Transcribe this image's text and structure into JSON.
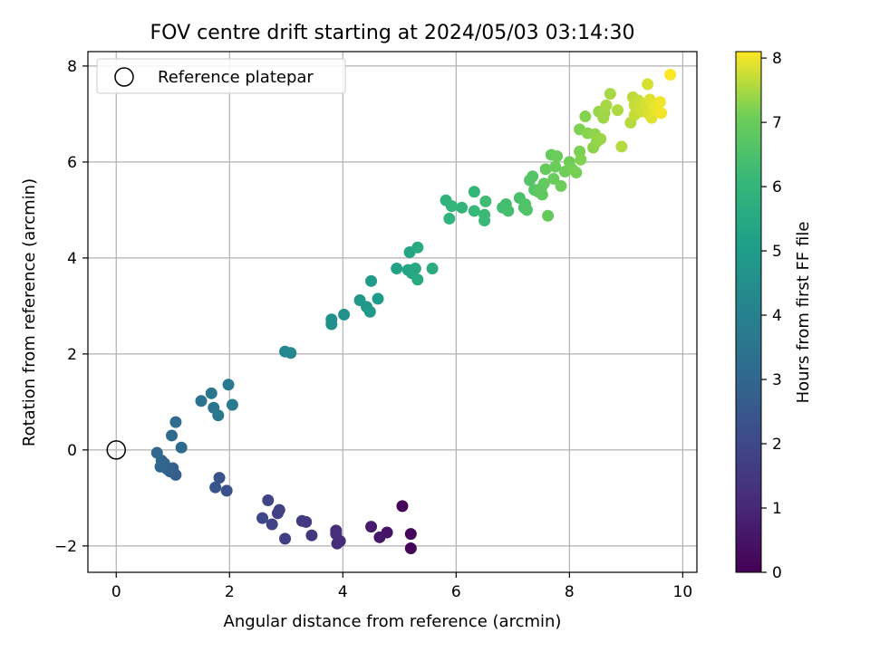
{
  "chart_data": {
    "type": "scatter",
    "title": "FOV centre drift starting at 2024/05/03 03:14:30",
    "xlabel": "Angular distance from reference (arcmin)",
    "ylabel": "Rotation from reference (arcmin)",
    "xlim": [
      -0.5,
      10.25
    ],
    "ylim": [
      -2.55,
      8.3
    ],
    "xticks": [
      0,
      2,
      4,
      6,
      8,
      10
    ],
    "yticks": [
      -2,
      0,
      2,
      4,
      6,
      8
    ],
    "grid": true,
    "legend_placement": "upper-left",
    "legend": [
      {
        "label": "Reference platepar",
        "marker": "open-circle"
      }
    ],
    "reference_point": {
      "x": 0,
      "y": 0
    },
    "colorbar": {
      "label": "Hours from first FF file",
      "colormap": "viridis",
      "range": [
        0,
        8.1
      ],
      "ticks": [
        0,
        1,
        2,
        3,
        4,
        5,
        6,
        7,
        8
      ]
    },
    "series": [
      {
        "points": [
          [
            5.05,
            -1.17,
            0.15
          ],
          [
            5.2,
            -1.75,
            0.15
          ],
          [
            5.2,
            -2.05,
            0.1
          ],
          [
            4.78,
            -1.72,
            0.5
          ],
          [
            4.65,
            -1.82,
            0.55
          ],
          [
            4.5,
            -1.6,
            0.7
          ],
          [
            3.95,
            -1.9,
            1.1
          ],
          [
            3.9,
            -1.95,
            1.15
          ],
          [
            3.88,
            -1.68,
            1.2
          ],
          [
            3.88,
            -1.75,
            1.25
          ],
          [
            3.45,
            -1.78,
            1.5
          ],
          [
            3.35,
            -1.5,
            1.55
          ],
          [
            3.28,
            -1.48,
            1.6
          ],
          [
            2.98,
            -1.85,
            1.7
          ],
          [
            2.88,
            -1.25,
            1.75
          ],
          [
            2.85,
            -1.32,
            1.8
          ],
          [
            2.75,
            -1.55,
            1.85
          ],
          [
            2.68,
            -1.05,
            1.9
          ],
          [
            2.58,
            -1.42,
            2.0
          ],
          [
            1.95,
            -0.85,
            2.3
          ],
          [
            1.82,
            -0.58,
            2.35
          ],
          [
            1.75,
            -0.78,
            2.4
          ],
          [
            1.05,
            -0.52,
            2.7
          ],
          [
            1.0,
            -0.38,
            2.75
          ],
          [
            0.95,
            -0.45,
            2.8
          ],
          [
            0.9,
            -0.4,
            2.85
          ],
          [
            0.85,
            -0.28,
            2.9
          ],
          [
            0.8,
            -0.22,
            2.95
          ],
          [
            0.78,
            -0.35,
            3.0
          ],
          [
            0.72,
            -0.06,
            3.05
          ],
          [
            1.15,
            0.05,
            3.1
          ],
          [
            0.98,
            0.3,
            3.15
          ],
          [
            1.05,
            0.58,
            3.2
          ],
          [
            1.5,
            1.02,
            3.5
          ],
          [
            1.68,
            1.18,
            3.55
          ],
          [
            1.72,
            0.88,
            3.6
          ],
          [
            1.8,
            0.72,
            3.65
          ],
          [
            1.98,
            1.36,
            3.7
          ],
          [
            2.05,
            0.94,
            3.75
          ],
          [
            2.98,
            2.05,
            4.2
          ],
          [
            3.08,
            2.02,
            4.25
          ],
          [
            3.8,
            2.62,
            4.5
          ],
          [
            3.8,
            2.72,
            4.55
          ],
          [
            4.02,
            2.82,
            4.6
          ],
          [
            4.3,
            3.12,
            4.8
          ],
          [
            4.42,
            2.98,
            4.85
          ],
          [
            4.48,
            2.88,
            4.9
          ],
          [
            4.5,
            3.52,
            4.95
          ],
          [
            4.62,
            3.15,
            5.0
          ],
          [
            4.95,
            3.78,
            5.2
          ],
          [
            5.15,
            3.75,
            5.3
          ],
          [
            5.18,
            4.12,
            5.35
          ],
          [
            5.22,
            3.68,
            5.4
          ],
          [
            5.28,
            3.78,
            5.45
          ],
          [
            5.32,
            3.55,
            5.5
          ],
          [
            5.32,
            4.22,
            5.55
          ],
          [
            5.58,
            3.78,
            5.6
          ],
          [
            5.82,
            5.2,
            5.85
          ],
          [
            5.88,
            4.82,
            5.9
          ],
          [
            5.92,
            5.08,
            5.95
          ],
          [
            6.1,
            5.05,
            6.0
          ],
          [
            6.32,
            5.38,
            6.05
          ],
          [
            6.32,
            4.98,
            6.1
          ],
          [
            6.5,
            4.78,
            6.15
          ],
          [
            6.5,
            4.9,
            6.2
          ],
          [
            6.52,
            5.18,
            6.25
          ],
          [
            6.82,
            5.05,
            6.3
          ],
          [
            6.88,
            5.12,
            6.35
          ],
          [
            6.92,
            4.98,
            6.4
          ],
          [
            7.12,
            5.25,
            6.45
          ],
          [
            7.2,
            5.05,
            6.5
          ],
          [
            7.22,
            5.12,
            6.55
          ],
          [
            7.25,
            5.0,
            6.6
          ],
          [
            7.3,
            5.62,
            6.6
          ],
          [
            7.35,
            5.7,
            6.65
          ],
          [
            7.38,
            5.42,
            6.7
          ],
          [
            7.45,
            5.38,
            6.75
          ],
          [
            7.5,
            5.45,
            6.8
          ],
          [
            7.52,
            5.32,
            6.82
          ],
          [
            7.55,
            5.55,
            6.85
          ],
          [
            7.58,
            5.85,
            6.9
          ],
          [
            7.62,
            4.88,
            6.92
          ],
          [
            7.68,
            6.15,
            6.95
          ],
          [
            7.72,
            5.65,
            6.98
          ],
          [
            7.75,
            5.9,
            7.0
          ],
          [
            7.78,
            6.12,
            7.02
          ],
          [
            7.85,
            5.5,
            7.05
          ],
          [
            7.92,
            5.8,
            7.08
          ],
          [
            8.0,
            6.0,
            7.1
          ],
          [
            8.05,
            5.85,
            7.12
          ],
          [
            8.12,
            5.78,
            7.15
          ],
          [
            8.18,
            6.22,
            7.18
          ],
          [
            8.18,
            6.68,
            7.2
          ],
          [
            8.2,
            6.05,
            7.22
          ],
          [
            8.28,
            6.95,
            7.25
          ],
          [
            8.32,
            6.6,
            7.28
          ],
          [
            8.42,
            6.3,
            7.3
          ],
          [
            8.45,
            6.58,
            7.32
          ],
          [
            8.48,
            6.42,
            7.35
          ],
          [
            8.52,
            7.05,
            7.38
          ],
          [
            8.55,
            6.48,
            7.4
          ],
          [
            8.6,
            6.92,
            7.42
          ],
          [
            8.62,
            7.02,
            7.45
          ],
          [
            8.65,
            7.18,
            7.48
          ],
          [
            8.72,
            7.42,
            7.5
          ],
          [
            8.85,
            7.08,
            7.55
          ],
          [
            8.92,
            6.32,
            7.58
          ],
          [
            9.08,
            6.82,
            7.6
          ],
          [
            9.12,
            7.35,
            7.65
          ],
          [
            9.15,
            6.98,
            7.68
          ],
          [
            9.15,
            7.18,
            7.7
          ],
          [
            9.22,
            7.28,
            7.72
          ],
          [
            9.25,
            7.05,
            7.75
          ],
          [
            9.3,
            7.1,
            7.78
          ],
          [
            9.35,
            7.22,
            7.8
          ],
          [
            9.38,
            7.62,
            7.82
          ],
          [
            9.4,
            7.0,
            7.85
          ],
          [
            9.42,
            7.3,
            7.88
          ],
          [
            9.45,
            6.92,
            7.9
          ],
          [
            9.48,
            7.12,
            7.92
          ],
          [
            9.52,
            7.18,
            7.95
          ],
          [
            9.55,
            7.05,
            7.98
          ],
          [
            9.6,
            7.25,
            8.0
          ],
          [
            9.62,
            7.02,
            8.02
          ],
          [
            9.78,
            7.82,
            8.08
          ]
        ]
      }
    ]
  }
}
